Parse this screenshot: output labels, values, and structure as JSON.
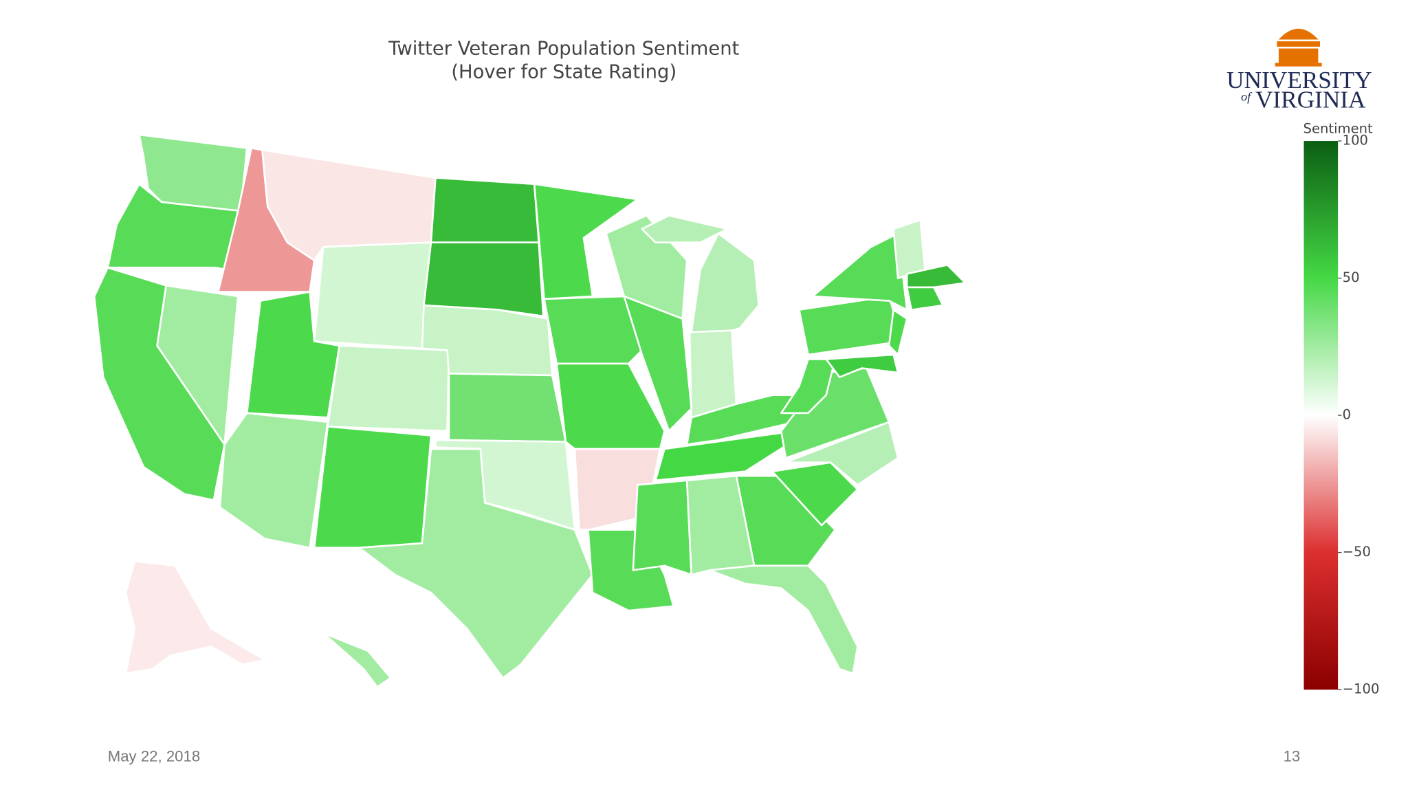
{
  "chart_data": {
    "type": "choropleth",
    "title": "Twitter Veteran Population Sentiment",
    "subtitle": "(Hover for State Rating)",
    "colorbar_title": "Sentiment",
    "values": [
      30,
      45,
      45,
      25,
      -25,
      -6,
      12,
      48,
      15,
      25,
      48,
      62,
      62,
      15,
      38,
      12,
      25,
      48,
      45,
      48,
      -8,
      45,
      25,
      45,
      20,
      15,
      0,
      45,
      50,
      45,
      25,
      45,
      25,
      48,
      20,
      40,
      45,
      45,
      45,
      48,
      55,
      15,
      62,
      55,
      -5,
      25
    ],
    "zlim": [
      -100,
      100
    ],
    "zticks": [
      {
        "value": -100,
        "label": "−100"
      },
      {
        "value": -50,
        "label": "−50"
      },
      0,
      50,
      100
    ],
    "colors": [
      "#8b0000",
      "#dc2f2f",
      "#ffffff",
      "#45d845",
      "#0b5e12"
    ]
  },
  "logo": {
    "line1": "UNIVERSITY",
    "of": "of",
    "line2": "VIRGINIA"
  },
  "footer": {
    "date": "May 22, 2018",
    "page": "13"
  }
}
